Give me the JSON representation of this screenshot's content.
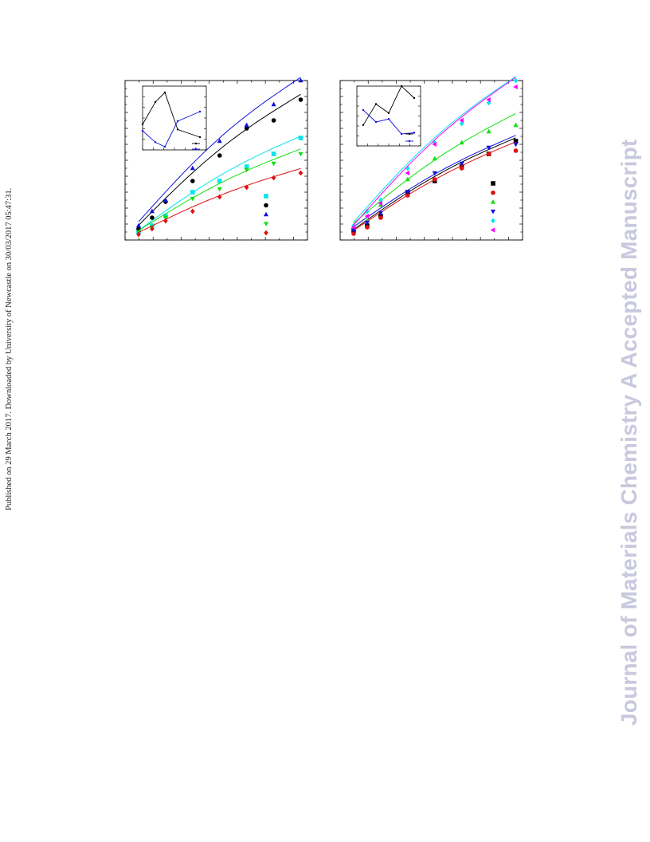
{
  "side_note": "Published on 29 March 2017. Downloaded by University of Newcastle on 30/03/2017 05:47:31.",
  "watermark": "Journal of Materials Chemistry A Accepted Manuscript",
  "chart_data": [
    {
      "type": "scatter",
      "x": [
        1,
        2,
        3,
        5,
        7,
        9,
        11,
        13
      ],
      "xlim": [
        0,
        13.5
      ],
      "ylim": [
        0,
        10
      ],
      "series": [
        {
          "color": "#00e5ee",
          "marker": "square",
          "values": [
            0.5,
            0.9,
            1.5,
            3.0,
            3.7,
            4.6,
            5.4,
            6.4
          ]
        },
        {
          "color": "#000000",
          "marker": "circle",
          "values": [
            0.7,
            1.4,
            2.4,
            3.7,
            5.3,
            7.0,
            7.5,
            8.8
          ]
        },
        {
          "color": "#1010e0",
          "marker": "triangle",
          "values": [
            0.9,
            1.8,
            2.5,
            4.5,
            6.2,
            7.2,
            8.5,
            10.0
          ]
        },
        {
          "color": "#10e010",
          "marker": "tri-down",
          "values": [
            0.5,
            0.8,
            1.4,
            2.6,
            3.2,
            4.4,
            4.8,
            5.4
          ]
        },
        {
          "color": "#e01010",
          "marker": "diamond",
          "values": [
            0.35,
            0.7,
            1.2,
            1.8,
            2.7,
            3.3,
            3.9,
            4.2
          ]
        }
      ],
      "inset": {
        "xlim": [
          0,
          10
        ],
        "ylim": [
          0,
          10
        ],
        "series": [
          {
            "color": "#000000",
            "x": [
              0,
              2,
              3.5,
              5.5,
              9
            ],
            "y": [
              4,
              7.5,
              9,
              3.2,
              2
            ]
          },
          {
            "color": "#1010e0",
            "x": [
              0,
              2,
              3.5,
              5.5,
              9
            ],
            "y": [
              3,
              1.2,
              0.5,
              4.5,
              6
            ]
          }
        ]
      }
    },
    {
      "type": "scatter",
      "x": [
        1,
        2,
        3,
        5,
        7,
        9,
        11,
        13
      ],
      "xlim": [
        0,
        13.5
      ],
      "ylim": [
        0,
        10
      ],
      "series": [
        {
          "color": "#000000",
          "marker": "square",
          "values": [
            0.6,
            0.9,
            1.5,
            3.0,
            3.7,
            4.6,
            5.4,
            6.2
          ]
        },
        {
          "color": "#e01010",
          "marker": "circle",
          "values": [
            0.4,
            0.8,
            1.4,
            2.8,
            3.8,
            4.5,
            5.4,
            5.6
          ]
        },
        {
          "color": "#10e010",
          "marker": "triangle",
          "values": [
            0.7,
            1.2,
            2.2,
            3.8,
            5.1,
            6.1,
            6.8,
            7.2
          ]
        },
        {
          "color": "#1010e0",
          "marker": "tri-down",
          "values": [
            0.6,
            1.1,
            1.7,
            3.0,
            4.2,
            4.8,
            5.8,
            6.0
          ]
        },
        {
          "color": "#00e5ee",
          "marker": "diamond",
          "values": [
            0.9,
            1.8,
            2.5,
            4.5,
            6.1,
            7.3,
            8.6,
            10.0
          ]
        },
        {
          "color": "#ff00ff",
          "marker": "tri-left",
          "values": [
            0.8,
            1.5,
            2.3,
            4.2,
            6.0,
            7.5,
            8.8,
            9.6
          ]
        }
      ],
      "inset": {
        "xlim": [
          0,
          10
        ],
        "ylim": [
          0,
          10
        ],
        "series": [
          {
            "color": "#000000",
            "x": [
              1,
              3,
              5,
              7,
              9
            ],
            "y": [
              3.5,
              7,
              5.5,
              10,
              8
            ]
          },
          {
            "color": "#1010e0",
            "x": [
              1,
              3,
              5,
              7,
              9
            ],
            "y": [
              6,
              4,
              4.5,
              2,
              2.2
            ]
          }
        ]
      }
    }
  ]
}
